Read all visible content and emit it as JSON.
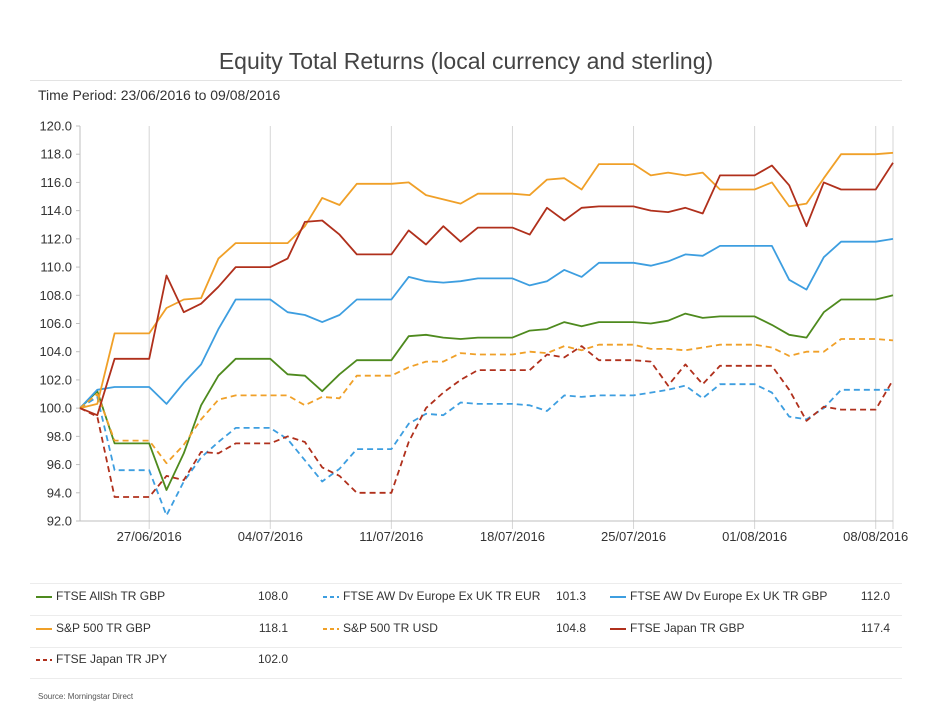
{
  "chart_data": {
    "type": "line",
    "title": "Equity Total Returns (local currency and sterling)",
    "subtitle": "Time Period: 23/06/2016 to 09/08/2016",
    "source": "Source: Morningstar Direct",
    "x_start": "23/06/2016",
    "x_end": "09/08/2016",
    "x_ticks": [
      "27/06/2016",
      "04/07/2016",
      "11/07/2016",
      "18/07/2016",
      "25/07/2016",
      "01/08/2016",
      "08/08/2016"
    ],
    "ylim": [
      92.0,
      120.0
    ],
    "y_ticks": [
      "92.0",
      "94.0",
      "96.0",
      "98.0",
      "100.0",
      "102.0",
      "104.0",
      "106.0",
      "108.0",
      "110.0",
      "112.0",
      "114.0",
      "116.0",
      "118.0",
      "120.0"
    ],
    "grid": "vertical-at-date-ticks",
    "legend_position": "bottom",
    "dates": [
      "23/06/2016",
      "24/06/2016",
      "25/06/2016",
      "26/06/2016",
      "27/06/2016",
      "28/06/2016",
      "29/06/2016",
      "30/06/2016",
      "01/07/2016",
      "02/07/2016",
      "03/07/2016",
      "04/07/2016",
      "05/07/2016",
      "06/07/2016",
      "07/07/2016",
      "08/07/2016",
      "09/07/2016",
      "10/07/2016",
      "11/07/2016",
      "12/07/2016",
      "13/07/2016",
      "14/07/2016",
      "15/07/2016",
      "16/07/2016",
      "17/07/2016",
      "18/07/2016",
      "19/07/2016",
      "20/07/2016",
      "21/07/2016",
      "22/07/2016",
      "23/07/2016",
      "24/07/2016",
      "25/07/2016",
      "26/07/2016",
      "27/07/2016",
      "28/07/2016",
      "29/07/2016",
      "30/07/2016",
      "31/07/2016",
      "01/08/2016",
      "02/08/2016",
      "03/08/2016",
      "04/08/2016",
      "05/08/2016",
      "06/08/2016",
      "07/08/2016",
      "08/08/2016",
      "09/08/2016"
    ],
    "series": [
      {
        "name": "FTSE AllSh TR GBP",
        "last": "108.0",
        "color": "#4e8a1e",
        "dash": false,
        "values": [
          100.0,
          101.2,
          97.5,
          97.5,
          97.5,
          94.2,
          96.8,
          100.2,
          102.3,
          103.5,
          103.5,
          103.5,
          102.4,
          102.3,
          101.2,
          102.4,
          103.4,
          103.4,
          103.4,
          105.1,
          105.2,
          105.0,
          104.9,
          105.0,
          105.0,
          105.0,
          105.5,
          105.6,
          106.1,
          105.8,
          106.1,
          106.1,
          106.1,
          106.0,
          106.2,
          106.7,
          106.4,
          106.5,
          106.5,
          106.5,
          105.9,
          105.2,
          105.0,
          106.8,
          107.7,
          107.7,
          107.7,
          108.0
        ]
      },
      {
        "name": "FTSE AW Dv Europe Ex UK TR EUR",
        "last": "101.3",
        "color": "#3d9ee0",
        "dash": true,
        "values": [
          100.0,
          100.8,
          95.6,
          95.6,
          95.6,
          92.4,
          94.8,
          96.5,
          97.6,
          98.6,
          98.6,
          98.6,
          97.8,
          96.3,
          94.8,
          95.7,
          97.1,
          97.1,
          97.1,
          98.9,
          99.6,
          99.5,
          100.4,
          100.3,
          100.3,
          100.3,
          100.2,
          99.8,
          100.9,
          100.8,
          100.9,
          100.9,
          100.9,
          101.1,
          101.3,
          101.6,
          100.7,
          101.7,
          101.7,
          101.7,
          101.1,
          99.4,
          99.2,
          100.0,
          101.3,
          101.3,
          101.3,
          101.3
        ]
      },
      {
        "name": "FTSE AW Dv Europe Ex UK TR GBP",
        "last": "112.0",
        "color": "#3d9ee0",
        "dash": false,
        "values": [
          100.0,
          101.3,
          101.5,
          101.5,
          101.5,
          100.3,
          101.8,
          103.1,
          105.6,
          107.7,
          107.7,
          107.7,
          106.8,
          106.6,
          106.1,
          106.6,
          107.7,
          107.7,
          107.7,
          109.3,
          109.0,
          108.9,
          109.0,
          109.2,
          109.2,
          109.2,
          108.7,
          109.0,
          109.8,
          109.3,
          110.3,
          110.3,
          110.3,
          110.1,
          110.4,
          110.9,
          110.8,
          111.5,
          111.5,
          111.5,
          111.5,
          109.1,
          108.4,
          110.7,
          111.8,
          111.8,
          111.8,
          112.0
        ]
      },
      {
        "name": "S&P 500 TR GBP",
        "last": "118.1",
        "color": "#f0a028",
        "dash": false,
        "values": [
          100.0,
          100.3,
          105.3,
          105.3,
          105.3,
          107.1,
          107.7,
          107.8,
          110.6,
          111.7,
          111.7,
          111.7,
          111.7,
          112.9,
          114.9,
          114.4,
          115.9,
          115.9,
          115.9,
          116.0,
          115.1,
          114.8,
          114.5,
          115.2,
          115.2,
          115.2,
          115.1,
          116.2,
          116.3,
          115.5,
          117.3,
          117.3,
          117.3,
          116.5,
          116.7,
          116.5,
          116.7,
          115.5,
          115.5,
          115.5,
          116.0,
          114.3,
          114.5,
          116.3,
          118.0,
          118.0,
          118.0,
          118.1
        ]
      },
      {
        "name": "S&P 500 TR USD",
        "last": "104.8",
        "color": "#f0a028",
        "dash": true,
        "values": [
          100.0,
          101.0,
          97.7,
          97.7,
          97.7,
          96.1,
          97.4,
          99.2,
          100.6,
          100.9,
          100.9,
          100.9,
          100.9,
          100.2,
          100.8,
          100.7,
          102.3,
          102.3,
          102.3,
          102.9,
          103.3,
          103.3,
          103.9,
          103.8,
          103.8,
          103.8,
          104.0,
          103.9,
          104.4,
          104.1,
          104.5,
          104.5,
          104.5,
          104.2,
          104.2,
          104.1,
          104.3,
          104.5,
          104.5,
          104.5,
          104.3,
          103.7,
          104.0,
          104.0,
          104.9,
          104.9,
          104.9,
          104.8
        ]
      },
      {
        "name": "FTSE Japan TR GBP",
        "last": "117.4",
        "color": "#b0301c",
        "dash": false,
        "values": [
          100.0,
          99.5,
          103.5,
          103.5,
          103.5,
          109.4,
          106.8,
          107.4,
          108.6,
          110.0,
          110.0,
          110.0,
          110.6,
          113.2,
          113.3,
          112.3,
          110.9,
          110.9,
          110.9,
          112.6,
          111.6,
          112.9,
          111.8,
          112.8,
          112.8,
          112.8,
          112.3,
          114.2,
          113.3,
          114.2,
          114.3,
          114.3,
          114.3,
          114.0,
          113.9,
          114.2,
          113.8,
          116.5,
          116.5,
          116.5,
          117.2,
          115.8,
          112.9,
          116.0,
          115.5,
          115.5,
          115.5,
          117.4
        ]
      },
      {
        "name": "FTSE Japan TR JPY",
        "last": "102.0",
        "color": "#b0301c",
        "dash": true,
        "values": [
          100.0,
          99.4,
          93.7,
          93.7,
          93.7,
          95.2,
          94.9,
          96.9,
          96.8,
          97.5,
          97.5,
          97.5,
          98.0,
          97.6,
          95.8,
          95.2,
          94.0,
          94.0,
          94.0,
          97.6,
          100.0,
          101.1,
          102.0,
          102.7,
          102.7,
          102.7,
          102.7,
          103.8,
          103.6,
          104.4,
          103.4,
          103.4,
          103.4,
          103.3,
          101.6,
          103.1,
          101.7,
          103.0,
          103.0,
          103.0,
          103.0,
          101.3,
          99.1,
          100.1,
          99.9,
          99.9,
          99.9,
          102.0
        ]
      }
    ]
  }
}
